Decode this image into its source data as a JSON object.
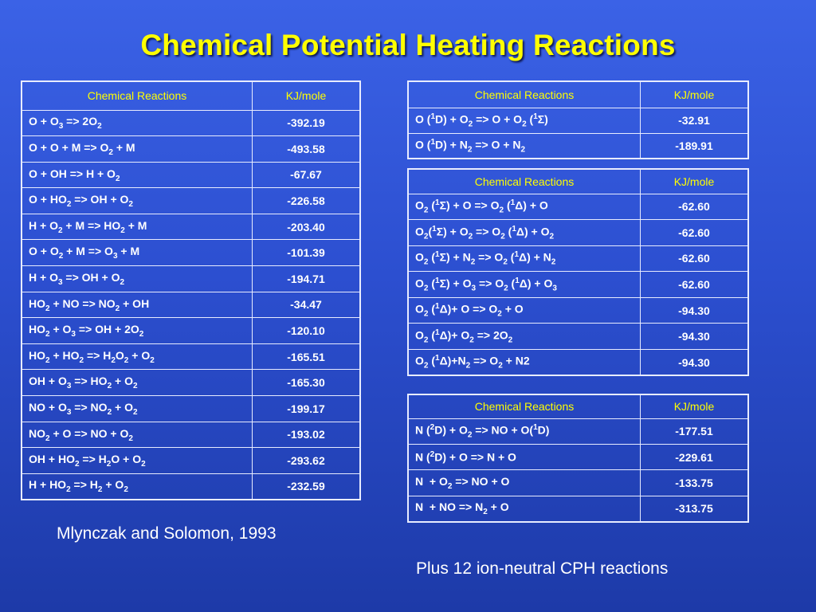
{
  "title": "Chemical Potential Heating Reactions",
  "headers": {
    "reaction": "Chemical Reactions",
    "energy": "KJ/mole"
  },
  "table1": [
    {
      "r": "O + O<sub>3</sub> =&gt; 2O<sub>2</sub>",
      "v": "-392.19"
    },
    {
      "r": "O + O + M =&gt; O<sub>2</sub> + M",
      "v": "-493.58"
    },
    {
      "r": "O + OH =&gt; H + O<sub>2</sub>",
      "v": "-67.67"
    },
    {
      "r": "O + HO<sub>2</sub> =&gt; OH + O<sub>2</sub>",
      "v": "-226.58"
    },
    {
      "r": "H + O<sub>2</sub> + M =&gt; HO<sub>2</sub> + M",
      "v": "-203.40"
    },
    {
      "r": "O + O<sub>2</sub> + M =&gt; O<sub>3</sub> + M",
      "v": "-101.39"
    },
    {
      "r": "H + O<sub>3</sub> =&gt; OH + O<sub>2</sub>",
      "v": "-194.71"
    },
    {
      "r": "HO<sub>2</sub> + NO =&gt; NO<sub>2</sub> + OH",
      "v": "-34.47"
    },
    {
      "r": "HO<sub>2</sub> + O<sub>3</sub> =&gt; OH + 2O<sub>2</sub>",
      "v": "-120.10"
    },
    {
      "r": "HO<sub>2</sub> + HO<sub>2</sub> =&gt; H<sub>2</sub>O<sub>2</sub> + O<sub>2</sub>",
      "v": "-165.51"
    },
    {
      "r": "OH + O<sub>3</sub> =&gt; HO<sub>2</sub> + O<sub>2</sub>",
      "v": "-165.30"
    },
    {
      "r": "NO + O<sub>3</sub> =&gt; NO<sub>2</sub> + O<sub>2</sub>",
      "v": "-199.17"
    },
    {
      "r": "NO<sub>2</sub> + O =&gt; NO + O<sub>2</sub>",
      "v": "-193.02"
    },
    {
      "r": "OH + HO<sub>2</sub> =&gt; H<sub>2</sub>O + O<sub>2</sub>",
      "v": "-293.62"
    },
    {
      "r": "H + HO<sub>2</sub> =&gt; H<sub>2</sub> + O<sub>2</sub>",
      "v": "-232.59"
    }
  ],
  "table2": [
    {
      "r": "O (<sup>1</sup>D) + O<sub>2</sub> =&gt; O + O<sub>2</sub> (<sup>1</sup>&Sigma;)",
      "v": "-32.91"
    },
    {
      "r": "O (<sup>1</sup>D) + N<sub>2</sub> =&gt; O + N<sub>2</sub>",
      "v": "-189.91"
    }
  ],
  "table3": [
    {
      "r": "O<sub>2</sub> (<sup>1</sup>&Sigma;) + O =&gt; O<sub>2</sub> (<sup>1</sup>&Delta;) + O",
      "v": "-62.60"
    },
    {
      "r": "O<sub>2</sub>(<sup>1</sup>&Sigma;) + O<sub>2</sub> =&gt; O<sub>2</sub> (<sup>1</sup>&Delta;) + O<sub>2</sub>",
      "v": "-62.60"
    },
    {
      "r": "O<sub>2</sub> (<sup>1</sup>&Sigma;) + N<sub>2</sub> =&gt; O<sub>2</sub> (<sup>1</sup>&Delta;) + N<sub>2</sub>",
      "v": "-62.60"
    },
    {
      "r": "O<sub>2</sub> (<sup>1</sup>&Sigma;) + O<sub>3</sub> =&gt; O<sub>2</sub> (<sup>1</sup>&Delta;) + O<sub>3</sub>",
      "v": "-62.60"
    },
    {
      "r": "O<sub>2</sub> (<sup>1</sup>&Delta;)+ O =&gt; O<sub>2</sub> + O",
      "v": "-94.30"
    },
    {
      "r": "O<sub>2</sub> (<sup>1</sup>&Delta;)+ O<sub>2</sub> =&gt; 2O<sub>2</sub>",
      "v": "-94.30"
    },
    {
      "r": "O<sub>2</sub> (<sup>1</sup>&Delta;)+N<sub>2</sub> =&gt; O<sub>2</sub> + N2",
      "v": "-94.30"
    }
  ],
  "table4": [
    {
      "r": "N (<sup>2</sup>D) + O<sub>2</sub> =&gt; NO + O(<sup>1</sup>D)",
      "v": "-177.51"
    },
    {
      "r": "N (<sup>2</sup>D) + O =&gt; N + O",
      "v": "-229.61"
    },
    {
      "r": "N&nbsp; + O<sub>2</sub> =&gt; NO + O",
      "v": "-133.75"
    },
    {
      "r": "N&nbsp; + NO =&gt; N<sub>2</sub> + O",
      "v": "-313.75"
    }
  ],
  "citation": "Mlynczak and Solomon, 1993",
  "footnote": "Plus 12 ion-neutral CPH reactions",
  "colors": {
    "title": "#ffff00",
    "header_text": "#ffff00",
    "body_text": "#ffffff",
    "background": "#2c4fd0"
  }
}
